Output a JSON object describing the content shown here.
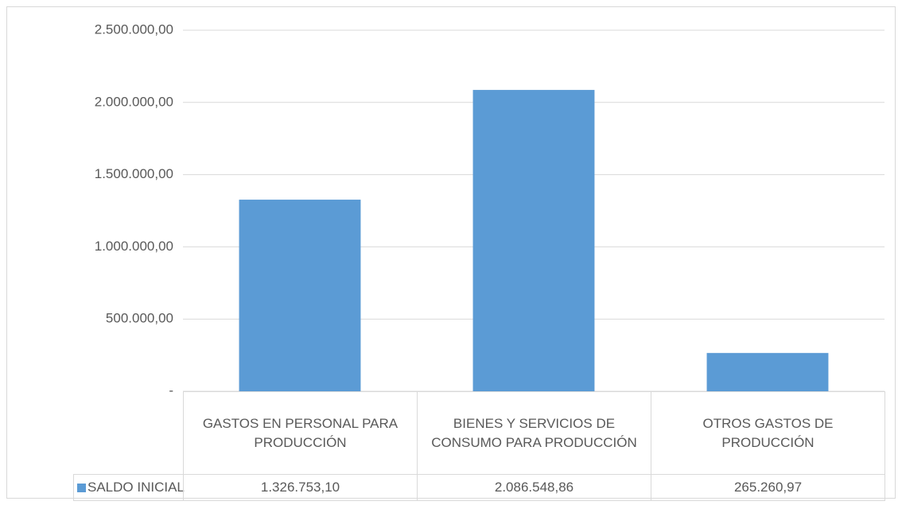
{
  "chart_data": {
    "type": "bar",
    "categories": [
      "GASTOS EN PERSONAL PARA PRODUCCIÓN",
      "BIENES Y SERVICIOS DE CONSUMO PARA PRODUCCIÓN",
      "OTROS GASTOS DE PRODUCCIÓN"
    ],
    "series": [
      {
        "name": "SALDO INICIAL",
        "color": "#5b9bd5",
        "values": [
          1326753.1,
          2086548.86,
          265260.97
        ],
        "value_labels": [
          "1.326.753,10",
          "2.086.548,86",
          "265.260,97"
        ]
      }
    ],
    "ylim": [
      0,
      2500000
    ],
    "yticks": [
      {
        "value": 0,
        "label": "-"
      },
      {
        "value": 500000,
        "label": "500.000,00"
      },
      {
        "value": 1000000,
        "label": "1.000.000,00"
      },
      {
        "value": 1500000,
        "label": "1.500.000,00"
      },
      {
        "value": 2000000,
        "label": "2.000.000,00"
      },
      {
        "value": 2500000,
        "label": "2.500.000,00"
      }
    ],
    "grid": true,
    "legend": "bottom"
  }
}
